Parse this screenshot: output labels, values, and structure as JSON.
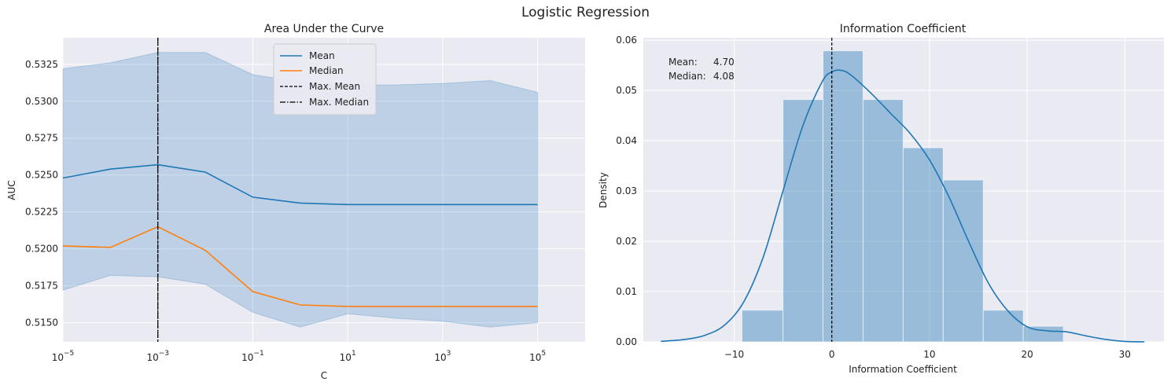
{
  "figure": {
    "suptitle": "Logistic Regression"
  },
  "chart_data": [
    {
      "type": "line",
      "title": "Area Under the Curve",
      "xlabel": "C",
      "ylabel": "AUC",
      "xscale": "log",
      "x": [
        1e-05,
        0.0001,
        0.001,
        0.01,
        0.1,
        1,
        10,
        100,
        1000,
        10000,
        100000
      ],
      "xtick_labels": [
        {
          "base": "10",
          "exp": "−5"
        },
        {
          "base": "10",
          "exp": "−3"
        },
        {
          "base": "10",
          "exp": "−1"
        },
        {
          "base": "10",
          "exp": "1"
        },
        {
          "base": "10",
          "exp": "3"
        },
        {
          "base": "10",
          "exp": "5"
        }
      ],
      "xticks": [
        1e-05,
        0.001,
        0.1,
        10,
        1000,
        100000
      ],
      "xlim": [
        1e-05,
        1000000
      ],
      "ylim": [
        0.5137,
        0.5343
      ],
      "yticks": [
        0.515,
        0.5175,
        0.52,
        0.5225,
        0.525,
        0.5275,
        0.53,
        0.5325
      ],
      "ytick_labels": [
        "0.5150",
        "0.5175",
        "0.5200",
        "0.5225",
        "0.5250",
        "0.5275",
        "0.5300",
        "0.5325"
      ],
      "series": [
        {
          "name": "Mean",
          "color": "#1f77b4",
          "values": [
            0.5248,
            0.5254,
            0.5257,
            0.5252,
            0.5235,
            0.5231,
            0.523,
            0.523,
            0.523,
            0.523,
            0.523
          ]
        },
        {
          "name": "Median",
          "color": "#ff7f0e",
          "values": [
            0.5202,
            0.5201,
            0.5215,
            0.5199,
            0.5171,
            0.5162,
            0.5161,
            0.5161,
            0.5161,
            0.5161,
            0.5161
          ]
        }
      ],
      "band": {
        "color": "#1f77b4",
        "upper": [
          0.5322,
          0.5326,
          0.5333,
          0.5333,
          0.5318,
          0.5313,
          0.5311,
          0.5311,
          0.5312,
          0.5314,
          0.5306
        ],
        "lower": [
          0.5172,
          0.5182,
          0.5181,
          0.5176,
          0.5157,
          0.5147,
          0.5156,
          0.5153,
          0.5151,
          0.5147,
          0.515
        ]
      },
      "vlines": [
        {
          "name": "Max. Mean",
          "x": 0.001,
          "style": "dashed",
          "color": "#000000"
        },
        {
          "name": "Max. Median",
          "x": 0.001,
          "style": "dashdot",
          "color": "#000000"
        }
      ],
      "legend": "upper center",
      "grid": true
    },
    {
      "type": "histogram",
      "title": "Information Coefficient",
      "xlabel": "Information Coefficient",
      "ylabel": "Density",
      "xlim": [
        -19.3,
        34.0
      ],
      "ylim": [
        0,
        0.0605
      ],
      "xticks": [
        -10,
        0,
        10,
        20,
        30
      ],
      "xtick_labels": [
        "−10",
        "0",
        "10",
        "20",
        "30"
      ],
      "yticks": [
        0,
        0.01,
        0.02,
        0.03,
        0.04,
        0.05,
        0.06
      ],
      "ytick_labels": [
        "0.00",
        "0.01",
        "0.02",
        "0.03",
        "0.04",
        "0.05",
        "0.06"
      ],
      "bins": [
        {
          "x0": -9.2,
          "x1": -5.0,
          "density": 0.0063
        },
        {
          "x0": -5.0,
          "x1": -0.9,
          "density": 0.0482
        },
        {
          "x0": -0.9,
          "x1": 3.2,
          "density": 0.0579
        },
        {
          "x0": 3.2,
          "x1": 7.3,
          "density": 0.0482
        },
        {
          "x0": 7.3,
          "x1": 11.4,
          "density": 0.0386
        },
        {
          "x0": 11.4,
          "x1": 15.5,
          "density": 0.0322
        },
        {
          "x0": 15.5,
          "x1": 19.6,
          "density": 0.0063
        },
        {
          "x0": 19.6,
          "x1": 23.7,
          "density": 0.0031
        }
      ],
      "kde": {
        "color": "#1f77b4",
        "x": [
          -17.5,
          -15,
          -13,
          -11,
          -9,
          -7,
          -5,
          -3,
          -1,
          0,
          1,
          2,
          4,
          6,
          8,
          10,
          12,
          14,
          16,
          18,
          20,
          22,
          24,
          26,
          28,
          30,
          32
        ],
        "y": [
          0.0001,
          0.0005,
          0.0013,
          0.0033,
          0.008,
          0.017,
          0.03,
          0.0428,
          0.0517,
          0.0537,
          0.054,
          0.053,
          0.0495,
          0.0455,
          0.0415,
          0.0362,
          0.0288,
          0.02,
          0.0118,
          0.0062,
          0.003,
          0.0022,
          0.002,
          0.0012,
          0.0005,
          0.0001,
          0.0
        ]
      },
      "bar_color": "#1f77b4",
      "vline": {
        "x": 0,
        "style": "dashed",
        "color": "#000000"
      },
      "annotation": {
        "lines": [
          {
            "label": "Mean:",
            "value": "4.70"
          },
          {
            "label": "Median:",
            "value": "4.08"
          }
        ]
      },
      "grid": true
    }
  ]
}
